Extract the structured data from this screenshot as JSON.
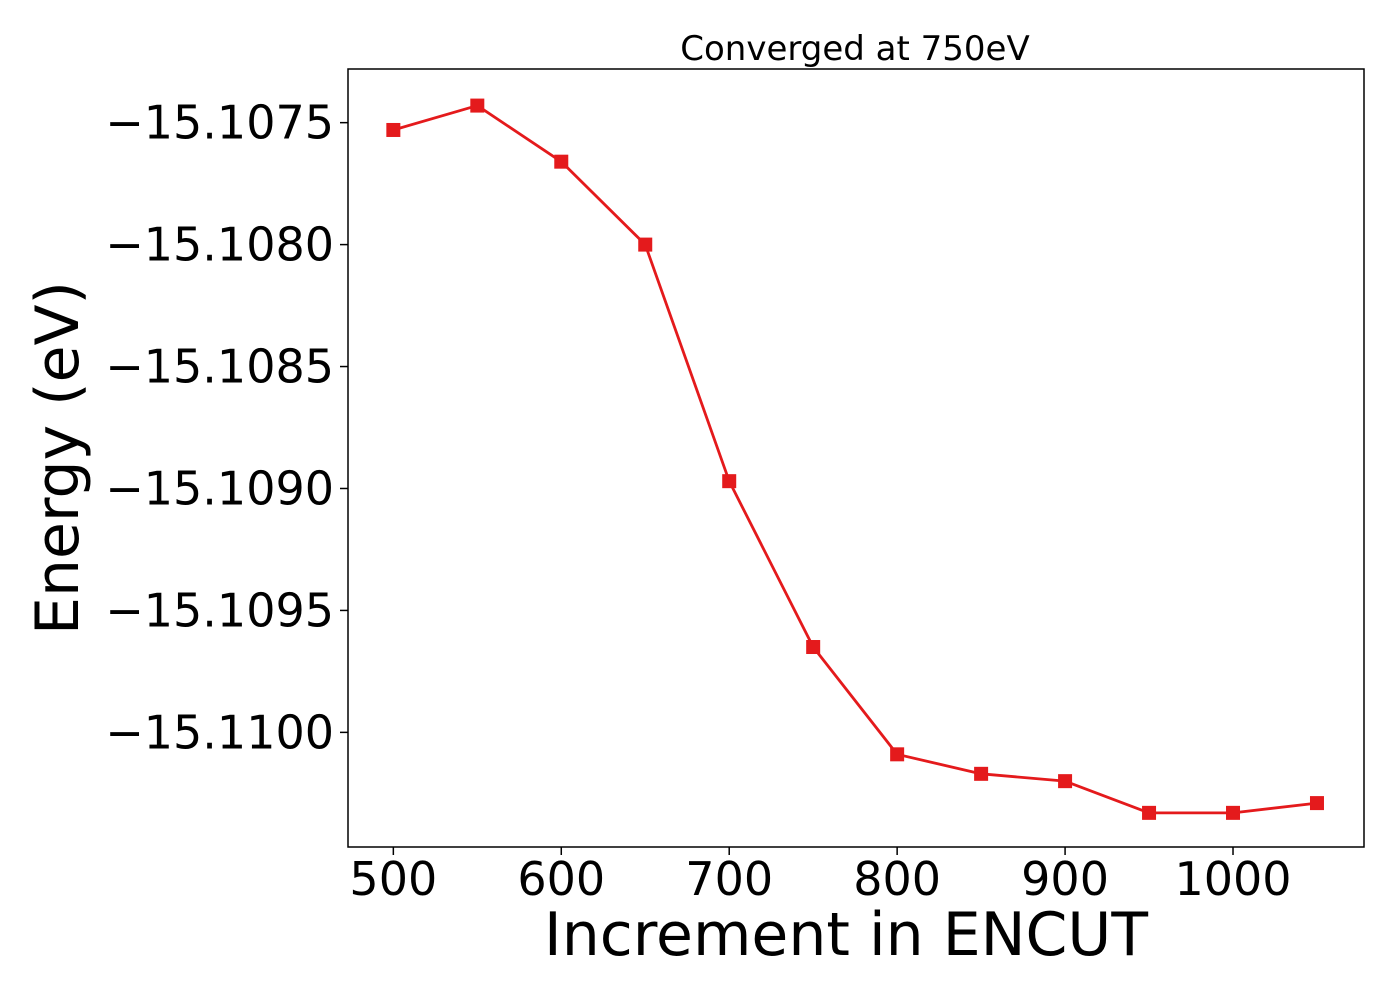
{
  "chart_data": {
    "type": "line",
    "title": "Converged at 750eV",
    "xlabel": "Increment in ENCUT",
    "ylabel": "Energy (eV)",
    "x": [
      500,
      550,
      600,
      650,
      700,
      750,
      800,
      850,
      900,
      950,
      1000,
      1050
    ],
    "series": [
      {
        "values": [
          -15.10753,
          -15.10743,
          -15.10766,
          -15.108,
          -15.10897,
          -15.10965,
          -15.11009,
          -15.11017,
          -15.1102,
          -15.11033,
          -15.11033,
          -15.11029
        ]
      }
    ],
    "xlim": [
      473,
      1078
    ],
    "ylim": [
      -15.11047,
      -15.10728
    ],
    "xticks": [
      500,
      600,
      700,
      800,
      900,
      1000
    ],
    "xtick_labels": [
      "500",
      "600",
      "700",
      "800",
      "900",
      "1000"
    ],
    "yticks": [
      -15.1075,
      -15.108,
      -15.1085,
      -15.109,
      -15.1095,
      -15.11
    ],
    "ytick_labels": [
      "−15.1075",
      "−15.1080",
      "−15.1085",
      "−15.1090",
      "−15.1095",
      "−15.1100"
    ],
    "grid": false,
    "marker": "square",
    "color": "#e41a1c"
  }
}
